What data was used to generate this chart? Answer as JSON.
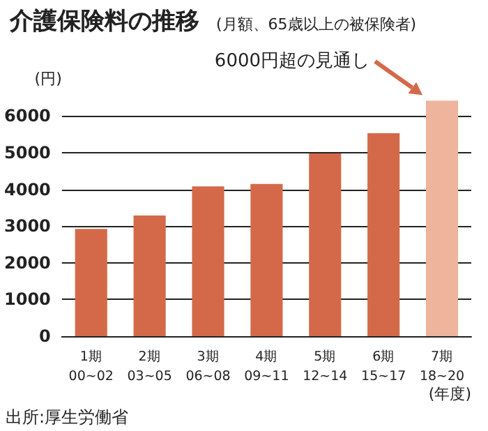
{
  "chart_data": {
    "type": "bar",
    "title": "介護保険料の推移",
    "subtitle": "(月額、65歳以上の被保険者)",
    "ylabel": "(円)",
    "xlabel": "(年度)",
    "categories": [
      "1期\n00~02",
      "2期\n03~05",
      "3期\n06~08",
      "4期\n09~11",
      "5期\n12~14",
      "6期\n15~17",
      "7期\n18~20"
    ],
    "values": [
      2920,
      3290,
      4080,
      4150,
      4980,
      5530,
      6420
    ],
    "colors": [
      "#d4694a",
      "#d4694a",
      "#d4694a",
      "#d4694a",
      "#d4694a",
      "#d4694a",
      "#eeb49c"
    ],
    "ylim": [
      0,
      6500
    ],
    "yticks": [
      0,
      1000,
      2000,
      3000,
      4000,
      5000,
      6000
    ],
    "grid": "y",
    "annotations": [
      "6000円超の見通し",
      "出所:厚生労働省"
    ]
  }
}
